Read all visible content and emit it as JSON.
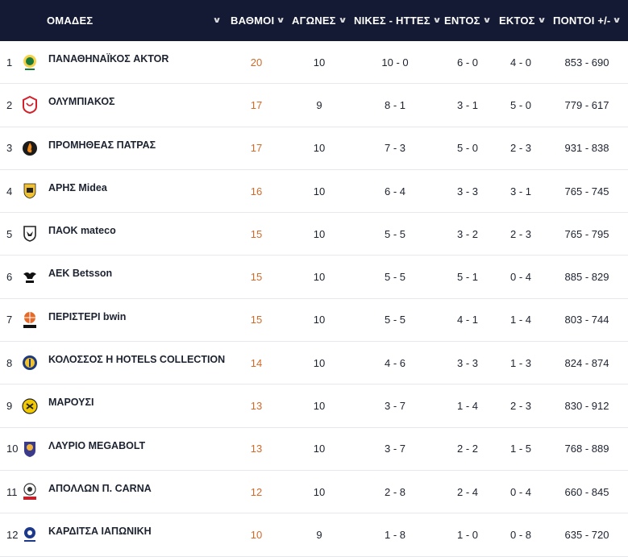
{
  "header": {
    "team": "ΟΜΑΔΕΣ",
    "points": "ΒΑΘΜΟΙ",
    "games": "ΑΓΩΝΕΣ",
    "wins_losses": "ΝΙΚΕΣ - ΗΤΤΕΣ",
    "home": "ΕΝΤΟΣ",
    "away": "ΕΚΤΟΣ",
    "points_diff": "ΠΟΝΤΟΙ +/-"
  },
  "colors": {
    "header_bg": "#141a33",
    "points_accent": "#d06a2a"
  },
  "rows": [
    {
      "rank": "1",
      "team": "ΠΑΝΑΘΗΝΑΪΚΟΣ AKTOR",
      "points": "20",
      "games": "10",
      "wl": "10 - 0",
      "home": "6 - 0",
      "away": "4 - 0",
      "pf": "853 - 690",
      "logo": "shamrock-logo-icon",
      "logo_color": "#1a7a3a"
    },
    {
      "rank": "2",
      "team": "ΟΛΥΜΠΙΑΚΟΣ",
      "points": "17",
      "games": "9",
      "wl": "8 - 1",
      "home": "3 - 1",
      "away": "5 - 0",
      "pf": "779 - 617",
      "logo": "laurel-crest-logo-icon",
      "logo_color": "#d3202a"
    },
    {
      "rank": "3",
      "team": "ΠΡΟΜΗΘΕΑΣ ΠΑΤΡΑΣ",
      "points": "17",
      "games": "10",
      "wl": "7 - 3",
      "home": "5 - 0",
      "away": "2 - 3",
      "pf": "931 - 838",
      "logo": "flame-logo-icon",
      "logo_color": "#1b1b1b"
    },
    {
      "rank": "4",
      "team": "ΑΡΗΣ Midea",
      "points": "16",
      "games": "10",
      "wl": "6 - 4",
      "home": "3 - 3",
      "away": "3 - 1",
      "pf": "765 - 745",
      "logo": "shield-logo-icon",
      "logo_color": "#f2c12e"
    },
    {
      "rank": "5",
      "team": "ΠΑΟΚ mateco",
      "points": "15",
      "games": "10",
      "wl": "5 - 5",
      "home": "3 - 2",
      "away": "2 - 3",
      "pf": "765 - 795",
      "logo": "eagle-shield-logo-icon",
      "logo_color": "#222222"
    },
    {
      "rank": "6",
      "team": "ΑΕΚ Betsson",
      "points": "15",
      "games": "10",
      "wl": "5 - 5",
      "home": "5 - 1",
      "away": "0 - 4",
      "pf": "885 - 829",
      "logo": "eagle-logo-icon",
      "logo_color": "#111111"
    },
    {
      "rank": "7",
      "team": "ΠΕΡΙΣΤΕΡΙ bwin",
      "points": "15",
      "games": "10",
      "wl": "5 - 5",
      "home": "4 - 1",
      "away": "1 - 4",
      "pf": "803 - 744",
      "logo": "ball-logo-icon",
      "logo_color": "#e46a2a"
    },
    {
      "rank": "8",
      "team": "ΚΟΛΟΣΣΟΣ H HOTELS COLLECTION",
      "points": "14",
      "games": "10",
      "wl": "4 - 6",
      "home": "3 - 3",
      "away": "1 - 3",
      "pf": "824 - 874",
      "logo": "colossus-logo-icon",
      "logo_color": "#1d3a7a"
    },
    {
      "rank": "9",
      "team": "ΜΑΡΟΥΣΙ",
      "points": "13",
      "games": "10",
      "wl": "3 - 7",
      "home": "1 - 4",
      "away": "2 - 3",
      "pf": "830 - 912",
      "logo": "round-badge-logo-icon",
      "logo_color": "#f2c800"
    },
    {
      "rank": "10",
      "team": "ΛΑΥΡΙΟ MEGABOLT",
      "points": "13",
      "games": "10",
      "wl": "3 - 7",
      "home": "2 - 2",
      "away": "1 - 5",
      "pf": "768 - 889",
      "logo": "crest-logo-icon",
      "logo_color": "#3a3a8a"
    },
    {
      "rank": "11",
      "team": "ΑΠΟΛΛΩΝ Π. CARNA",
      "points": "12",
      "games": "10",
      "wl": "2 - 8",
      "home": "2 - 4",
      "away": "0 - 4",
      "pf": "660 - 845",
      "logo": "apollo-logo-icon",
      "logo_color": "#c8202a"
    },
    {
      "rank": "12",
      "team": "ΚΑΡΔΙΤΣΑ ΙΑΠΩΝΙΚΗ",
      "points": "10",
      "games": "9",
      "wl": "1 - 8",
      "home": "1 - 0",
      "away": "0 - 8",
      "pf": "635 - 720",
      "logo": "karditsa-logo-icon",
      "logo_color": "#1d3a8a"
    }
  ]
}
